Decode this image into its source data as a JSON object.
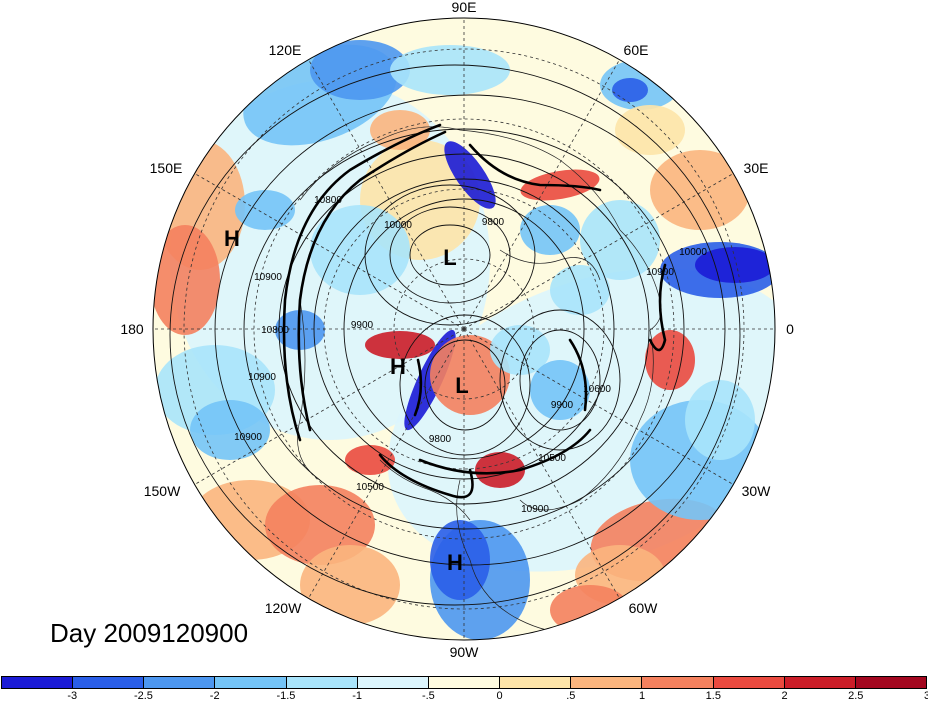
{
  "title": "Day 2009120900",
  "longitude_labels": [
    "90E",
    "60E",
    "30E",
    "0",
    "30W",
    "60W",
    "90W",
    "120W",
    "150W",
    "180",
    "150E",
    "120E"
  ],
  "pressure_centers": [
    {
      "label": "H"
    },
    {
      "label": "L"
    },
    {
      "label": "H"
    },
    {
      "label": "L"
    },
    {
      "label": "H"
    }
  ],
  "contour_labels": [
    "10000",
    "10900",
    "10900",
    "9900",
    "10900",
    "10500",
    "9800",
    "9900",
    "10000",
    "10900",
    "10600",
    "10500",
    "10900",
    "10800",
    "10800",
    "9800"
  ],
  "colorbar": {
    "colors": [
      "#1b1bd6",
      "#2a5ee8",
      "#4d97f0",
      "#74c4f7",
      "#a9e4fb",
      "#dcf5fd",
      "#fefbe0",
      "#fde4a9",
      "#fbb57e",
      "#f4815e",
      "#ea4a3f",
      "#cb1d28",
      "#a3071f"
    ],
    "ticks": [
      "-3",
      "-2.5",
      "-2",
      "-1.5",
      "-1",
      "-.5",
      "0",
      ".5",
      "1",
      "1.5",
      "2",
      "2.5",
      "3"
    ]
  },
  "colors": {
    "ocean_neutral": "#fefbe0",
    "negative": "#4d97f0",
    "positive": "#ea4a3f"
  }
}
